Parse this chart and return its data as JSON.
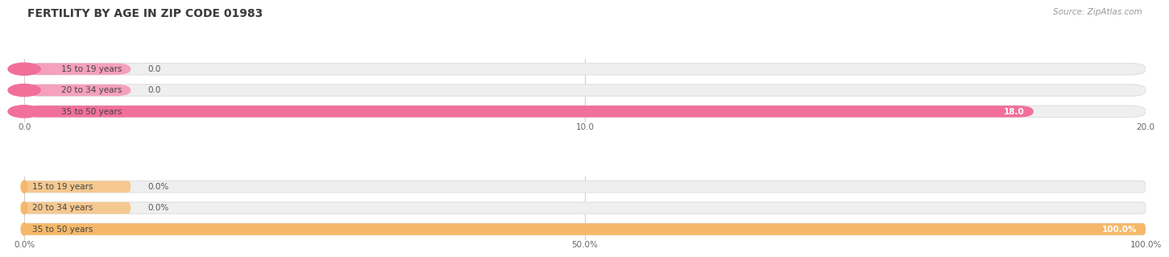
{
  "title": "FERTILITY BY AGE IN ZIP CODE 01983",
  "source": "Source: ZipAtlas.com",
  "top_chart": {
    "categories": [
      "15 to 19 years",
      "20 to 34 years",
      "35 to 50 years"
    ],
    "values": [
      0.0,
      0.0,
      18.0
    ],
    "xlim": [
      0,
      20
    ],
    "xticks": [
      0.0,
      10.0,
      20.0
    ],
    "xtick_labels": [
      "0.0",
      "10.0",
      "20.0"
    ],
    "bar_color": "#F0709A",
    "bar_bg_color": "#EFEFEF",
    "bar_edge_color": "#E0E0E0",
    "circle_color": "#F0709A",
    "stub_color": "#F5A0BC"
  },
  "bottom_chart": {
    "categories": [
      "15 to 19 years",
      "20 to 34 years",
      "35 to 50 years"
    ],
    "values": [
      0.0,
      0.0,
      100.0
    ],
    "xlim": [
      0,
      100
    ],
    "xticks": [
      0.0,
      50.0,
      100.0
    ],
    "xtick_labels": [
      "0.0%",
      "50.0%",
      "100.0%"
    ],
    "bar_color": "#F5B86A",
    "bar_bg_color": "#EFEFEF",
    "bar_edge_color": "#E0E0E0",
    "circle_color": "#F5B86A",
    "stub_color": "#F5C890"
  },
  "background_color": "#FFFFFF",
  "bar_height": 0.55,
  "text_color": "#444444",
  "grid_color": "#CCCCCC",
  "value_inside_color": "#FFFFFF",
  "value_outside_color": "#555555",
  "title_color": "#3A3A3A",
  "source_color": "#999999",
  "tick_color": "#666666"
}
